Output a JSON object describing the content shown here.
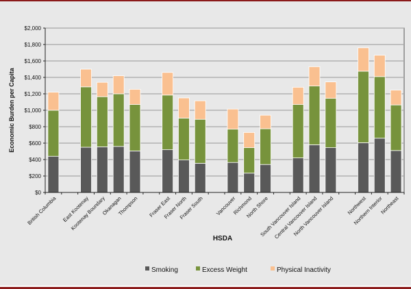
{
  "chart_data": {
    "type": "bar",
    "stacked": true,
    "xlabel": "HSDA",
    "ylabel": "Economic Burden per Capita",
    "ylim": [
      0,
      2000
    ],
    "yticks": [
      "$0",
      "$200",
      "$400",
      "$600",
      "$800",
      "$1,000",
      "$1,200",
      "$1,400",
      "$1,600",
      "$1,800",
      "$2,000"
    ],
    "grid": true,
    "legend_position": "bottom",
    "categories": [
      "British Columbia",
      "East Kootenay",
      "Kootenay Boundary",
      "Okanagan",
      "Thompson",
      "Fraser East",
      "Fraser North",
      "Fraser South",
      "Vancouver",
      "Richmond",
      "North Shore",
      "South Vancouver Island",
      "Central Vancouver Island",
      "North Vancouver Island",
      "Northwest",
      "Northern Interior",
      "Northeast"
    ],
    "series": [
      {
        "name": "Smoking",
        "color": "#595959",
        "values": [
          440,
          550,
          555,
          560,
          505,
          520,
          395,
          355,
          365,
          235,
          340,
          420,
          580,
          545,
          605,
          660,
          510
        ]
      },
      {
        "name": "Excess Weight",
        "color": "#77933c",
        "values": [
          560,
          735,
          610,
          640,
          565,
          665,
          510,
          535,
          405,
          310,
          435,
          650,
          715,
          600,
          870,
          750,
          555
        ]
      },
      {
        "name": "Physical Inactivity",
        "color": "#fac090",
        "values": [
          220,
          215,
          175,
          220,
          185,
          275,
          245,
          225,
          245,
          185,
          165,
          210,
          235,
          200,
          285,
          260,
          180
        ]
      }
    ]
  }
}
